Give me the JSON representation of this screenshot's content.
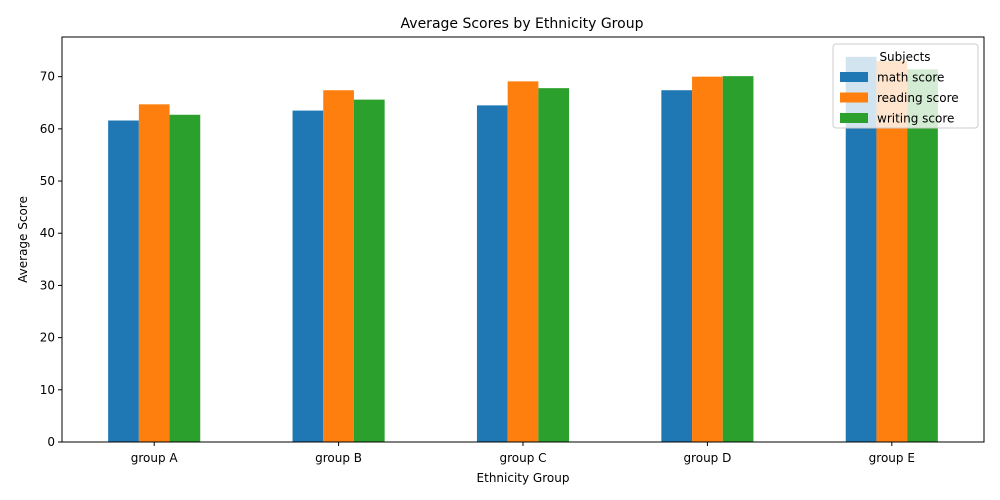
{
  "chart_data": {
    "type": "bar",
    "title": "Average Scores by Ethnicity Group",
    "xlabel": "Ethnicity Group",
    "ylabel": "Average Score",
    "categories": [
      "group A",
      "group B",
      "group C",
      "group D",
      "group E"
    ],
    "series": [
      {
        "name": "math score",
        "color": "#1f77b4",
        "values": [
          61.6,
          63.5,
          64.5,
          67.4,
          73.8
        ]
      },
      {
        "name": "reading score",
        "color": "#ff7f0e",
        "values": [
          64.7,
          67.4,
          69.1,
          70.0,
          73.0
        ]
      },
      {
        "name": "writing score",
        "color": "#2ca02c",
        "values": [
          62.7,
          65.6,
          67.8,
          70.1,
          71.4
        ]
      }
    ],
    "ylim": [
      0,
      77.6
    ],
    "yticks": [
      0,
      10,
      20,
      30,
      40,
      50,
      60,
      70
    ],
    "grid": false,
    "legend": {
      "title": "Subjects",
      "placement": "top-right"
    }
  }
}
